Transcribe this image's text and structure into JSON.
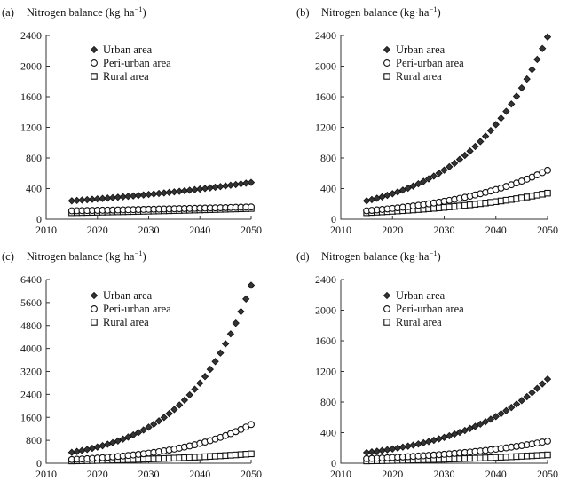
{
  "chart_data": [
    {
      "type": "scatter",
      "panel_label": "(a)",
      "title": "Nitrogen balance (kg·ha",
      "title_exp": "−1",
      "title_close": ")",
      "xlabel": "",
      "ylabel": "Nitrogen balance (kg·ha−1)",
      "xlim": [
        2010,
        2050
      ],
      "ylim": [
        0,
        2400
      ],
      "xticks": [
        2010,
        2020,
        2030,
        2040,
        2050
      ],
      "yticks": [
        0,
        400,
        800,
        1200,
        1600,
        2000,
        2400
      ],
      "legend_position": "top-left",
      "x_start": 2015,
      "x_end": 2050,
      "series": [
        {
          "name": "Urban area",
          "marker": "diamond",
          "start": 240,
          "end": 480
        },
        {
          "name": "Peri-urban area",
          "marker": "circle",
          "start": 110,
          "end": 160
        },
        {
          "name": "Rural area",
          "marker": "square",
          "start": 85,
          "end": 140
        }
      ]
    },
    {
      "type": "scatter",
      "panel_label": "(b)",
      "title": "Nitrogen balance (kg·ha",
      "title_exp": "−1",
      "title_close": ")",
      "xlabel": "",
      "ylabel": "Nitrogen balance (kg·ha−1)",
      "xlim": [
        2010,
        2050
      ],
      "ylim": [
        0,
        2400
      ],
      "xticks": [
        2010,
        2020,
        2030,
        2040,
        2050
      ],
      "yticks": [
        0,
        400,
        800,
        1200,
        1600,
        2000,
        2400
      ],
      "legend_position": "top-left",
      "x_start": 2015,
      "x_end": 2050,
      "series": [
        {
          "name": "Urban area",
          "marker": "diamond",
          "start": 240,
          "end": 2380
        },
        {
          "name": "Peri-urban area",
          "marker": "circle",
          "start": 110,
          "end": 640
        },
        {
          "name": "Rural area",
          "marker": "square",
          "start": 85,
          "end": 340
        }
      ]
    },
    {
      "type": "scatter",
      "panel_label": "(c)",
      "title": "Nitrogen balance (kg·ha",
      "title_exp": "−1",
      "title_close": ")",
      "xlabel": "",
      "ylabel": "Nitrogen balance (kg·ha−1)",
      "xlim": [
        2010,
        2050
      ],
      "ylim": [
        0,
        6400
      ],
      "xticks": [
        2010,
        2020,
        2030,
        2040,
        2050
      ],
      "yticks": [
        0,
        800,
        1600,
        2400,
        3200,
        4000,
        4800,
        5600,
        6400
      ],
      "legend_position": "top-left",
      "x_start": 2015,
      "x_end": 2050,
      "series": [
        {
          "name": "Urban area",
          "marker": "diamond",
          "start": 380,
          "end": 6200
        },
        {
          "name": "Peri-urban area",
          "marker": "circle",
          "start": 130,
          "end": 1350
        },
        {
          "name": "Rural area",
          "marker": "square",
          "start": 80,
          "end": 330
        }
      ]
    },
    {
      "type": "scatter",
      "panel_label": "(d)",
      "title": "Nitrogen balance (kg·ha",
      "title_exp": "−1",
      "title_close": ")",
      "xlabel": "",
      "ylabel": "Nitrogen balance (kg·ha−1)",
      "xlim": [
        2010,
        2050
      ],
      "ylim": [
        0,
        2400
      ],
      "xticks": [
        2010,
        2020,
        2030,
        2040,
        2050
      ],
      "yticks": [
        0,
        400,
        800,
        1200,
        1600,
        2000,
        2400
      ],
      "legend_position": "top-left",
      "x_start": 2015,
      "x_end": 2050,
      "series": [
        {
          "name": "Urban area",
          "marker": "diamond",
          "start": 140,
          "end": 1100
        },
        {
          "name": "Peri-urban area",
          "marker": "circle",
          "start": 60,
          "end": 290
        },
        {
          "name": "Rural area",
          "marker": "square",
          "start": 30,
          "end": 110
        }
      ]
    }
  ]
}
